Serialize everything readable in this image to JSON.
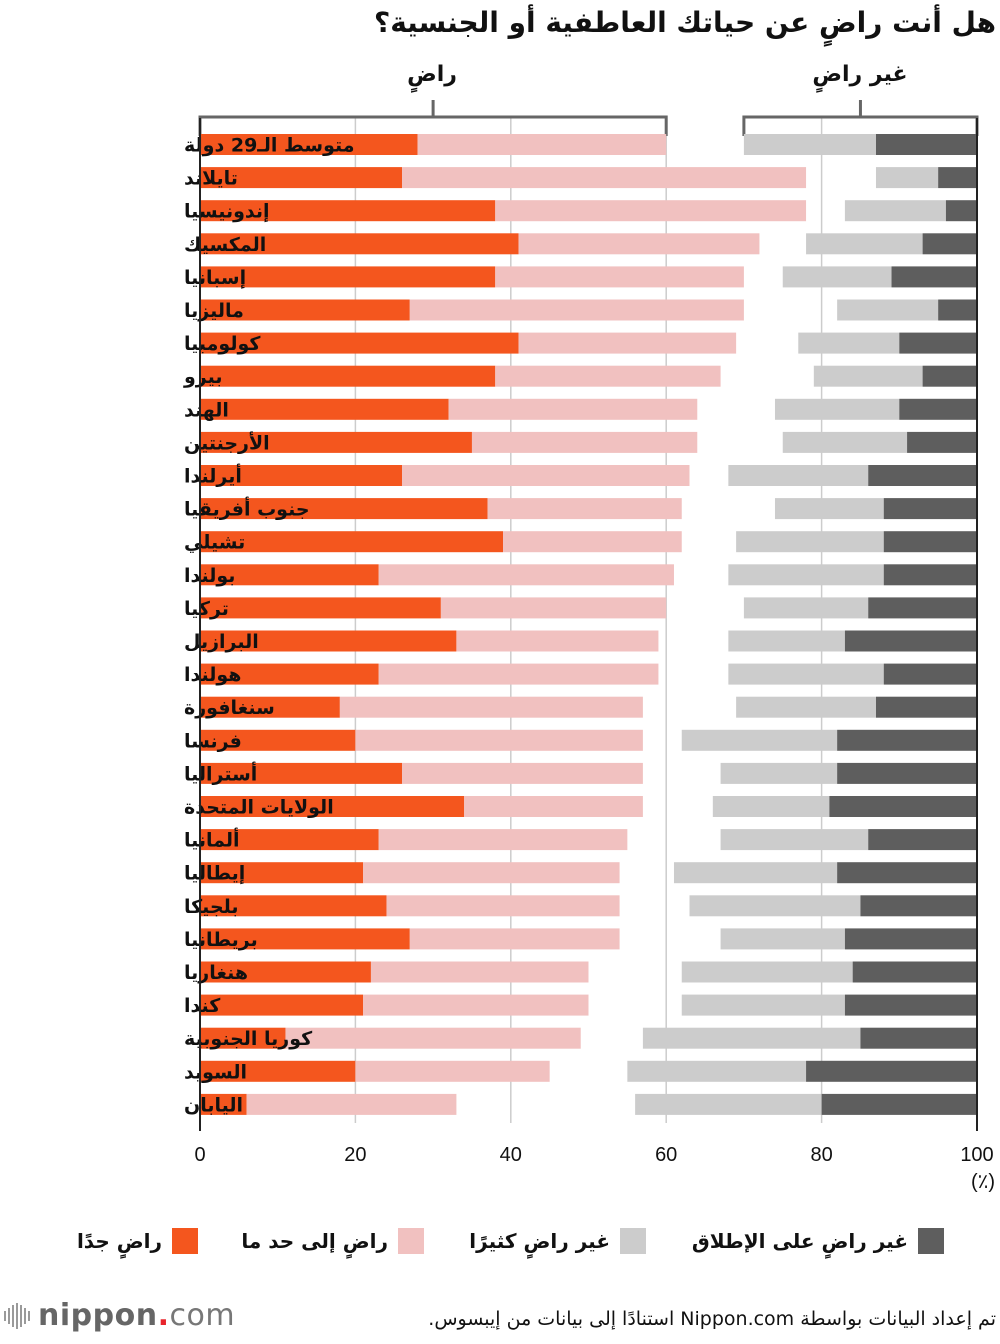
{
  "title": "هل أنت راضٍ عن حياتك العاطفية أو الجنسية؟",
  "group_labels": {
    "satisfied": "راضٍ",
    "not_satisfied": "غير راضٍ"
  },
  "legend": [
    {
      "key": "very_satisfied",
      "label": "راضٍ جدًا",
      "color": "#f4561e"
    },
    {
      "key": "somewhat_satisfied",
      "label": "راضٍ إلى حد ما",
      "color": "#f1c1c0"
    },
    {
      "key": "not_very_satisfied",
      "label": "غير راضٍ كثيرًا",
      "color": "#cccccc"
    },
    {
      "key": "not_at_all_satisfied",
      "label": "غير راضٍ على الإطلاق",
      "color": "#5e5e5e"
    }
  ],
  "unit_label": "(٪)",
  "source": "تم إعداد البيانات بواسطة Nippon.com استنادًا إلى بيانات من إيبسوس.",
  "logo": {
    "name": "nippon",
    "dot": ".",
    "tld": "com"
  },
  "chart_data": {
    "type": "bar",
    "orientation": "horizontal-stacked-diverging",
    "title": "هل أنت راضٍ عن حياتك العاطفية أو الجنسية؟",
    "xlabel": "",
    "unit": "(٪)",
    "xlim": [
      0,
      100
    ],
    "xticks": [
      0,
      20,
      40,
      60,
      80,
      100
    ],
    "grid": true,
    "legend_position": "bottom",
    "note": "Satisfied segments stack from 0; not-satisfied segments stack back from 100; values are cumulative boundaries in percent.",
    "categories": [
      "متوسط الـ29 دولة",
      "تايلاند",
      "إندونيسيا",
      "المكسيك",
      "إسبانيا",
      "ماليزيا",
      "كولومبيا",
      "بيرو",
      "الهند",
      "الأرجنتين",
      "أيرلندا",
      "جنوب أفريقيا",
      "تشيلي",
      "بولندا",
      "تركيا",
      "البرازيل",
      "هولندا",
      "سنغافورة",
      "فرنسا",
      "أستراليا",
      "الولايات المتحدة",
      "ألمانيا",
      "إيطاليا",
      "بلجيكا",
      "بريطانيا",
      "هنغاريا",
      "كندا",
      "كوريا الجنوبية",
      "السويد",
      "اليابان"
    ],
    "series": [
      {
        "name": "راضٍ جدًا",
        "values": [
          28,
          26,
          38,
          41,
          38,
          27,
          41,
          38,
          32,
          35,
          26,
          37,
          39,
          23,
          31,
          33,
          23,
          18,
          20,
          26,
          34,
          23,
          21,
          24,
          27,
          22,
          21,
          11,
          20,
          6
        ]
      },
      {
        "name": "راضٍ إلى حد ما",
        "values": [
          32,
          52,
          40,
          31,
          32,
          43,
          28,
          29,
          32,
          29,
          37,
          25,
          23,
          38,
          29,
          26,
          36,
          39,
          37,
          31,
          23,
          32,
          33,
          30,
          27,
          28,
          29,
          38,
          25,
          27
        ]
      },
      {
        "name": "غير راضٍ كثيرًا",
        "values": [
          17,
          8,
          13,
          15,
          14,
          13,
          13,
          14,
          16,
          16,
          18,
          14,
          19,
          20,
          16,
          15,
          20,
          18,
          20,
          15,
          15,
          19,
          21,
          22,
          16,
          22,
          21,
          28,
          23,
          24
        ]
      },
      {
        "name": "غير راضٍ على الإطلاق",
        "values": [
          13,
          5,
          4,
          7,
          11,
          5,
          10,
          7,
          10,
          9,
          14,
          12,
          12,
          12,
          14,
          17,
          12,
          13,
          18,
          18,
          19,
          14,
          18,
          15,
          17,
          16,
          17,
          15,
          22,
          20
        ]
      }
    ]
  }
}
